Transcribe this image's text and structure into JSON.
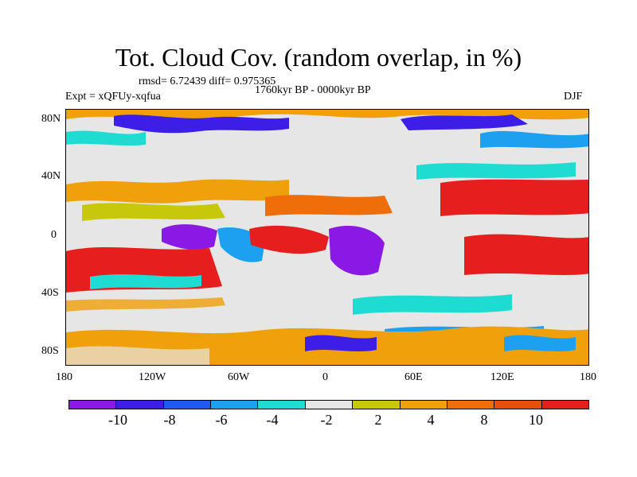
{
  "title": "Tot. Cloud Cov. (random overlap, in %)",
  "stats": "rmsd= 6.72439 diff= 0.975365",
  "experiment": "Expt = xQFUy-xqfua",
  "period": "1760kyr BP - 0000kyr BP",
  "season": "DJF",
  "map": {
    "lat_labels": [
      "80N",
      "40N",
      "0",
      "40S",
      "80S"
    ],
    "lon_labels": [
      "180",
      "120W",
      "60W",
      "0",
      "60E",
      "120E",
      "180"
    ]
  },
  "colorbar": {
    "colors": [
      "#8a19e6",
      "#3c1ee6",
      "#1e5af0",
      "#1ea0f0",
      "#1edcd2",
      "#e6e6e6",
      "#c8c80a",
      "#f0a00a",
      "#f06e0a",
      "#e6500a",
      "#e61e1e"
    ],
    "labels": [
      "-10",
      "-8",
      "-6",
      "-4",
      "-2",
      "2",
      "4",
      "8",
      "10"
    ]
  }
}
